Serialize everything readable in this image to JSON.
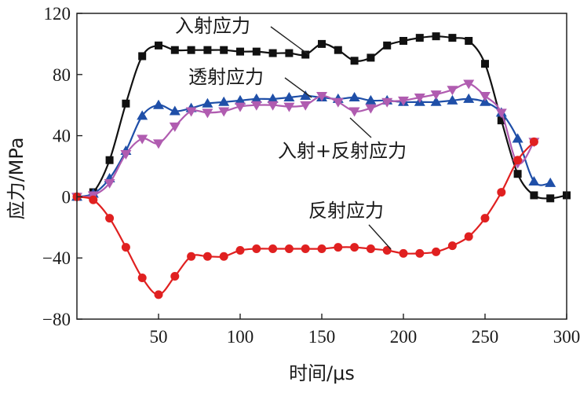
{
  "chart_data": {
    "type": "line",
    "xlabel": "时间/μs",
    "ylabel": "应力/MPa",
    "xlim": [
      0,
      300
    ],
    "ylim": [
      -80,
      120
    ],
    "x_ticks": [
      50,
      100,
      150,
      200,
      250,
      300
    ],
    "x_tick_labels": [
      "50",
      "100",
      "150",
      "200",
      "250",
      "300"
    ],
    "y_ticks": [
      -80,
      -40,
      0,
      40,
      80,
      120
    ],
    "y_tick_labels": [
      "−80",
      "−40",
      "0",
      "40",
      "80",
      "120"
    ],
    "grid": false,
    "annotations": {
      "incident": "入射应力",
      "transmitted": "透射应力",
      "sum": "入射+反射应力",
      "reflected": "反射应力"
    },
    "series": [
      {
        "key": "incident",
        "color": "#111111",
        "marker": "square",
        "x": [
          0,
          10,
          20,
          30,
          40,
          50,
          60,
          70,
          80,
          90,
          100,
          110,
          120,
          130,
          140,
          150,
          160,
          170,
          180,
          190,
          200,
          210,
          220,
          230,
          240,
          250,
          260,
          270,
          280,
          290,
          300
        ],
        "y": [
          0,
          3,
          24,
          61,
          92,
          99,
          96,
          96,
          96,
          96,
          95,
          95,
          94,
          94,
          93,
          100,
          96,
          89,
          91,
          99,
          102,
          104,
          105,
          104,
          102,
          87,
          50,
          15,
          1,
          -1,
          1
        ]
      },
      {
        "key": "transmitted",
        "color": "#1f4fa8",
        "marker": "triangle-up",
        "x": [
          0,
          10,
          20,
          30,
          40,
          50,
          60,
          70,
          80,
          90,
          100,
          110,
          120,
          130,
          140,
          150,
          160,
          170,
          180,
          190,
          200,
          210,
          220,
          230,
          240,
          250,
          260,
          270,
          280,
          290
        ],
        "y": [
          0,
          2,
          12,
          30,
          53,
          60,
          56,
          58,
          61,
          62,
          63,
          64,
          64,
          65,
          66,
          65,
          64,
          65,
          63,
          63,
          62,
          62,
          62,
          63,
          64,
          62,
          55,
          38,
          10,
          9
        ]
      },
      {
        "key": "sum",
        "color": "#b05cb0",
        "marker": "triangle-down",
        "x": [
          0,
          10,
          20,
          30,
          40,
          50,
          60,
          70,
          80,
          90,
          100,
          110,
          120,
          130,
          140,
          150,
          160,
          170,
          180,
          190,
          200,
          210,
          220,
          230,
          240,
          250,
          260,
          270,
          280
        ],
        "y": [
          0,
          1,
          9,
          28,
          38,
          35,
          46,
          56,
          55,
          56,
          59,
          60,
          60,
          59,
          60,
          66,
          62,
          56,
          58,
          62,
          63,
          65,
          67,
          70,
          74,
          66,
          55,
          22,
          36
        ]
      },
      {
        "key": "reflected",
        "color": "#e02020",
        "marker": "circle",
        "x": [
          0,
          10,
          20,
          30,
          40,
          50,
          60,
          70,
          80,
          90,
          100,
          110,
          120,
          130,
          140,
          150,
          160,
          170,
          180,
          190,
          200,
          210,
          220,
          230,
          240,
          250,
          260,
          270,
          280
        ],
        "y": [
          0,
          -2,
          -14,
          -33,
          -53,
          -64,
          -52,
          -39,
          -39,
          -39,
          -35,
          -34,
          -34,
          -34,
          -34,
          -34,
          -33,
          -33,
          -34,
          -35,
          -37,
          -37,
          -36,
          -32,
          -26,
          -14,
          3,
          24,
          36
        ]
      }
    ]
  }
}
